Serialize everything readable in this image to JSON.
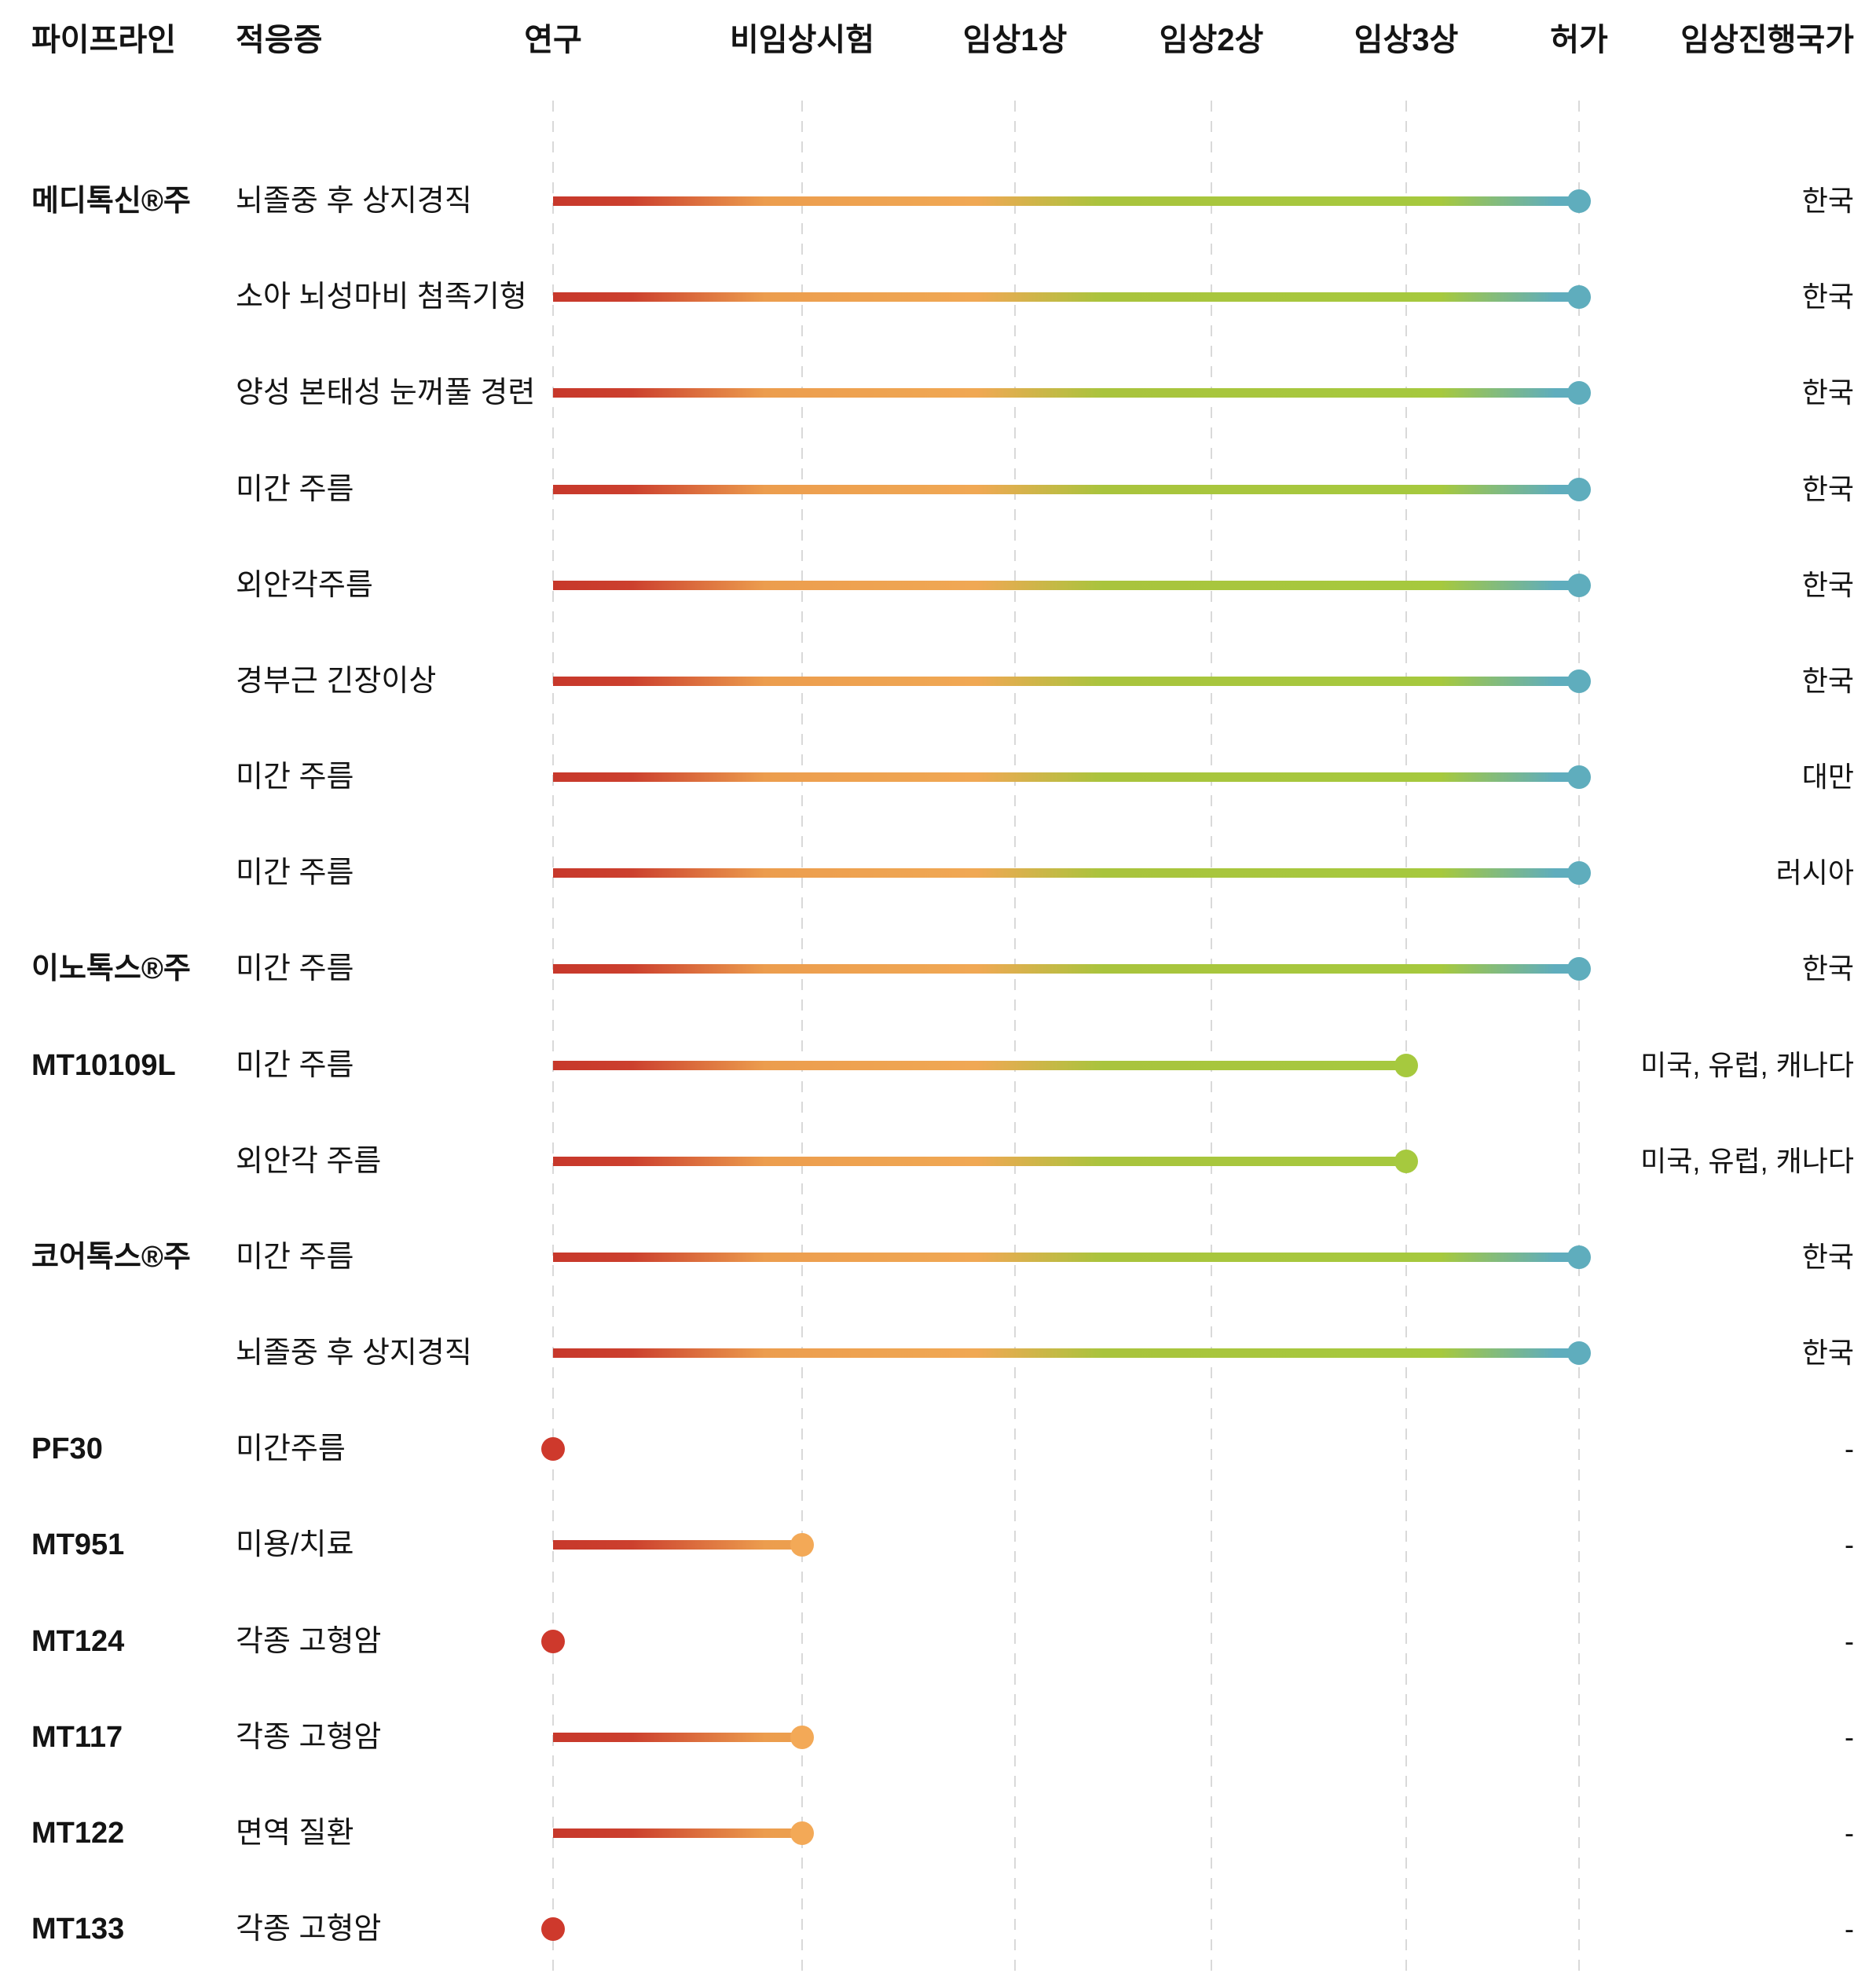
{
  "header": {
    "pipeline": "파이프라인",
    "indication": "적응증",
    "stages": [
      "연구",
      "비임상시험",
      "임상1상",
      "임상2상",
      "임상3상",
      "허가"
    ],
    "country": "임상진행국가"
  },
  "colors": {
    "dot_research": "#ce392c",
    "dot_preclinical": "#f3a957",
    "dot_phase3": "#a6c93e",
    "dot_approval": "#5fadbd",
    "gradient_red": "#c7382b",
    "gradient_orange": "#f0a854",
    "gradient_green": "#a6c93e",
    "gradient_teal": "#5fadbd",
    "gridline": "#d9d9d9",
    "text": "#141414"
  },
  "chart_data": {
    "type": "bar",
    "orientation": "horizontal",
    "title": "",
    "xlabel": "",
    "ylabel": "",
    "grid": "dashed-vertical",
    "legend_position": "none",
    "stages": [
      "연구",
      "비임상시험",
      "임상1상",
      "임상2상",
      "임상3상",
      "허가"
    ],
    "rows": [
      {
        "pipeline": "메디톡신®주",
        "indication": "뇌졸중 후 상지경직",
        "stage": "허가",
        "stage_index": 5,
        "country": "한국"
      },
      {
        "pipeline": "",
        "indication": "소아 뇌성마비 첨족기형",
        "stage": "허가",
        "stage_index": 5,
        "country": "한국"
      },
      {
        "pipeline": "",
        "indication": "양성 본태성 눈꺼풀 경련",
        "stage": "허가",
        "stage_index": 5,
        "country": "한국"
      },
      {
        "pipeline": "",
        "indication": "미간 주름",
        "stage": "허가",
        "stage_index": 5,
        "country": "한국"
      },
      {
        "pipeline": "",
        "indication": "외안각주름",
        "stage": "허가",
        "stage_index": 5,
        "country": "한국"
      },
      {
        "pipeline": "",
        "indication": "경부근 긴장이상",
        "stage": "허가",
        "stage_index": 5,
        "country": "한국"
      },
      {
        "pipeline": "",
        "indication": "미간 주름",
        "stage": "허가",
        "stage_index": 5,
        "country": "대만"
      },
      {
        "pipeline": "",
        "indication": "미간 주름",
        "stage": "허가",
        "stage_index": 5,
        "country": "러시아"
      },
      {
        "pipeline": "이노톡스®주",
        "indication": "미간 주름",
        "stage": "허가",
        "stage_index": 5,
        "country": "한국"
      },
      {
        "pipeline": "MT10109L",
        "indication": "미간 주름",
        "stage": "임상3상",
        "stage_index": 4,
        "country": "미국, 유럽, 캐나다"
      },
      {
        "pipeline": "",
        "indication": "외안각 주름",
        "stage": "임상3상",
        "stage_index": 4,
        "country": "미국, 유럽, 캐나다"
      },
      {
        "pipeline": "코어톡스®주",
        "indication": "미간 주름",
        "stage": "허가",
        "stage_index": 5,
        "country": "한국"
      },
      {
        "pipeline": "",
        "indication": "뇌졸중 후 상지경직",
        "stage": "허가",
        "stage_index": 5,
        "country": "한국"
      },
      {
        "pipeline": "PF30",
        "indication": "미간주름",
        "stage": "연구",
        "stage_index": 0,
        "country": "-"
      },
      {
        "pipeline": "MT951",
        "indication": "미용/치료",
        "stage": "비임상시험",
        "stage_index": 1,
        "country": "-"
      },
      {
        "pipeline": "MT124",
        "indication": "각종 고형암",
        "stage": "연구",
        "stage_index": 0,
        "country": "-"
      },
      {
        "pipeline": "MT117",
        "indication": "각종 고형암",
        "stage": "비임상시험",
        "stage_index": 1,
        "country": "-"
      },
      {
        "pipeline": "MT122",
        "indication": "면역 질환",
        "stage": "비임상시험",
        "stage_index": 1,
        "country": "-"
      },
      {
        "pipeline": "MT133",
        "indication": "각종 고형암",
        "stage": "연구",
        "stage_index": 0,
        "country": "-"
      }
    ]
  }
}
